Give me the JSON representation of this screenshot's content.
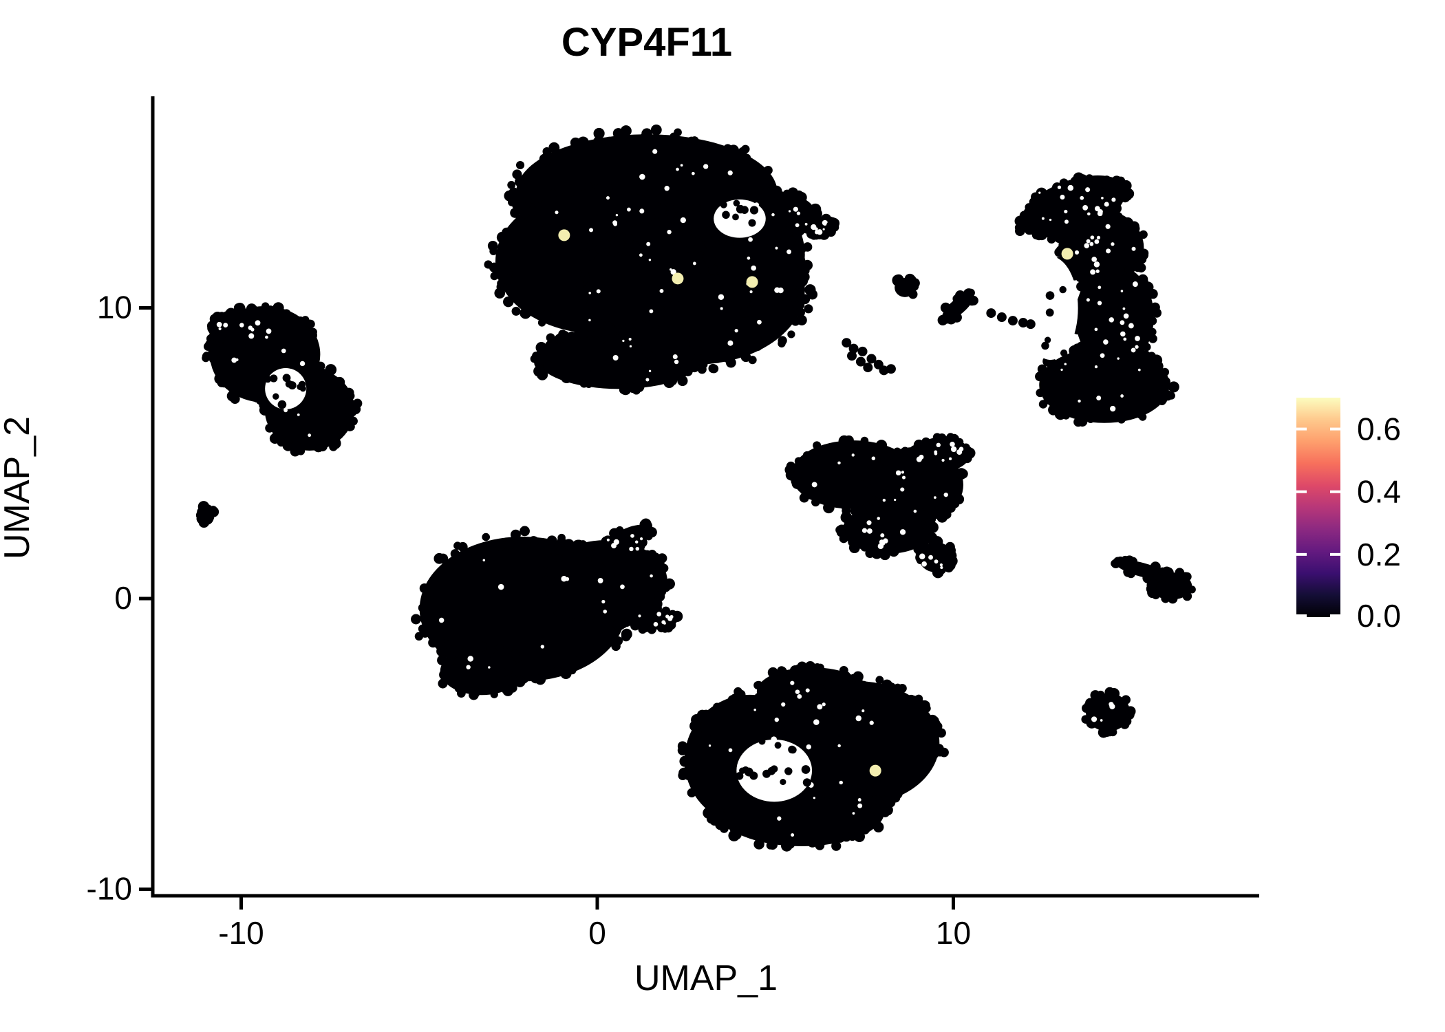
{
  "title": "CYP4F11",
  "chart_data": {
    "type": "scatter",
    "title": "CYP4F11",
    "xlabel": "UMAP_1",
    "ylabel": "UMAP_2",
    "x_ticks": [
      -10,
      0,
      10
    ],
    "x_tick_labels": [
      "-10",
      "0",
      "10"
    ],
    "y_ticks": [
      -10,
      0,
      10
    ],
    "y_tick_labels": [
      "-10",
      "0",
      "10"
    ],
    "xlim": [
      -12.5,
      18.6
    ],
    "ylim": [
      -10.2,
      17.2
    ],
    "grid": false,
    "point_color": "#000004",
    "background": "#ffffff",
    "legend": {
      "position": "right",
      "tick_values": [
        0.0,
        0.2,
        0.4,
        0.6
      ],
      "tick_labels": [
        "0.0",
        "0.2",
        "0.4",
        "0.6"
      ],
      "value_min": 0.0,
      "value_max": 0.7,
      "colormap": "magma",
      "gradient_bottom_to_top": [
        "#000004",
        "#140e36",
        "#3b0f70",
        "#641a80",
        "#8c2981",
        "#b73779",
        "#de4968",
        "#f7705c",
        "#fe9f6d",
        "#fec98d",
        "#fcfdbf"
      ]
    },
    "clusters": [
      {
        "name": "top-center-large",
        "parts": [
          [
            1.39,
            13.96,
            3.67,
            2.01,
            0
          ],
          [
            0.04,
            11.6,
            2.9,
            2.49,
            0
          ],
          [
            2.74,
            10.65,
            3.09,
            2.6,
            0
          ],
          [
            4.48,
            11.83,
            1.35,
            1.89,
            0
          ],
          [
            5.06,
            13.25,
            1.06,
            0.71,
            0
          ],
          [
            6.03,
            12.85,
            0.68,
            0.33,
            10
          ],
          [
            0.62,
            8.28,
            2.32,
            1.07,
            0
          ]
        ],
        "holes": [
          [
            4.0,
            13.07,
            0.73,
            0.66
          ]
        ],
        "hole_dots": 8,
        "speckles": 70
      },
      {
        "name": "top-right-crescent",
        "parts": [
          [
            13.37,
            13.49,
            1.55,
            0.9,
            -20
          ],
          [
            14.15,
            12.07,
            1.2,
            1.3,
            0
          ],
          [
            14.53,
            9.7,
            1.1,
            1.78,
            0
          ],
          [
            14.24,
            7.34,
            1.83,
            1.3,
            0
          ]
        ],
        "holes": [
          [
            12.73,
            9.99,
            0.77,
            1.78
          ]
        ],
        "hole_dots": 6,
        "speckles": 60
      },
      {
        "name": "left-ring",
        "parts": [
          [
            -9.33,
            8.4,
            1.55,
            1.66,
            0
          ],
          [
            -8.08,
            6.51,
            1.26,
            1.42,
            0
          ],
          [
            -10.01,
            9.35,
            0.77,
            0.64,
            0
          ]
        ],
        "holes": [
          [
            -8.75,
            7.22,
            0.58,
            0.71
          ]
        ],
        "hole_dots": 10,
        "speckles": 18
      },
      {
        "name": "far-left-speck",
        "parts": [
          [
            -10.94,
            2.89,
            0.19,
            0.35,
            0
          ]
        ],
        "holes": [],
        "hole_dots": 0,
        "speckles": 0
      },
      {
        "name": "center-left-large",
        "parts": [
          [
            -2.09,
            -0.36,
            2.9,
            2.49,
            0
          ],
          [
            0.23,
            0.59,
            1.74,
            1.42,
            0
          ],
          [
            0.72,
            1.89,
            0.87,
            0.43,
            -30
          ],
          [
            1.58,
            -0.71,
            0.68,
            0.36,
            0
          ],
          [
            -3.25,
            -2.49,
            1.16,
            0.83,
            0
          ]
        ],
        "holes": [],
        "hole_dots": 0,
        "speckles": 30
      },
      {
        "name": "mid-right-triangle",
        "parts": [
          [
            7.19,
            4.26,
            1.74,
            1.18,
            0
          ],
          [
            8.93,
            3.91,
            1.35,
            1.3,
            0
          ],
          [
            8.15,
            2.37,
            1.26,
            0.83,
            0
          ],
          [
            9.51,
            1.42,
            0.48,
            0.52,
            0
          ],
          [
            9.7,
            4.97,
            0.77,
            0.59,
            0
          ]
        ],
        "holes": [],
        "hole_dots": 0,
        "speckles": 40
      },
      {
        "name": "bottom-center",
        "parts": [
          [
            4.29,
            -5.56,
            1.84,
            2.25,
            0
          ],
          [
            7.29,
            -4.97,
            2.32,
            2.13,
            0
          ],
          [
            5.74,
            -7.34,
            2.32,
            1.18,
            0
          ],
          [
            6.03,
            -3.2,
            1.55,
            0.83,
            0
          ]
        ],
        "holes": [
          [
            4.97,
            -5.92,
            1.06,
            1.07
          ]
        ],
        "hole_dots": 16,
        "speckles": 30
      },
      {
        "name": "bottom-right-round",
        "parts": [
          [
            14.34,
            -3.91,
            0.62,
            0.66,
            0
          ]
        ],
        "holes": [],
        "hole_dots": 0,
        "speckles": 4
      },
      {
        "name": "right-arrow",
        "parts": [
          [
            15.3,
            0.99,
            0.77,
            0.24,
            15
          ],
          [
            16.12,
            0.43,
            0.58,
            0.47,
            0
          ]
        ],
        "holes": [],
        "hole_dots": 0,
        "speckles": 0
      },
      {
        "name": "mini-pair",
        "parts": [
          [
            8.64,
            10.7,
            0.29,
            0.33,
            0
          ]
        ],
        "holes": [],
        "hole_dots": 0,
        "speckles": 0
      },
      {
        "name": "mini-check",
        "parts": [
          [
            10.13,
            10.04,
            0.56,
            0.26,
            -40
          ]
        ],
        "holes": [],
        "hole_dots": 0,
        "speckles": 0
      }
    ],
    "single_points": [
      [
        6.57,
        12.83
      ],
      [
        11.06,
        9.82
      ],
      [
        11.36,
        9.68
      ],
      [
        11.67,
        9.56
      ],
      [
        11.96,
        9.49
      ],
      [
        12.17,
        9.44
      ],
      [
        7.0,
        8.8
      ],
      [
        7.2,
        8.6
      ],
      [
        7.15,
        8.35
      ],
      [
        7.45,
        8.5
      ],
      [
        7.4,
        8.15
      ],
      [
        7.7,
        8.25
      ],
      [
        7.6,
        7.95
      ],
      [
        7.9,
        8.05
      ],
      [
        8.05,
        7.85
      ],
      [
        8.25,
        7.9
      ]
    ],
    "highlight_points": {
      "color": "#f3eeb0",
      "value": 0.65,
      "points": [
        [
          -0.93,
          12.5
        ],
        [
          2.26,
          11.01
        ],
        [
          4.35,
          10.89
        ],
        [
          13.2,
          11.86
        ],
        [
          7.81,
          -5.92
        ]
      ]
    }
  }
}
